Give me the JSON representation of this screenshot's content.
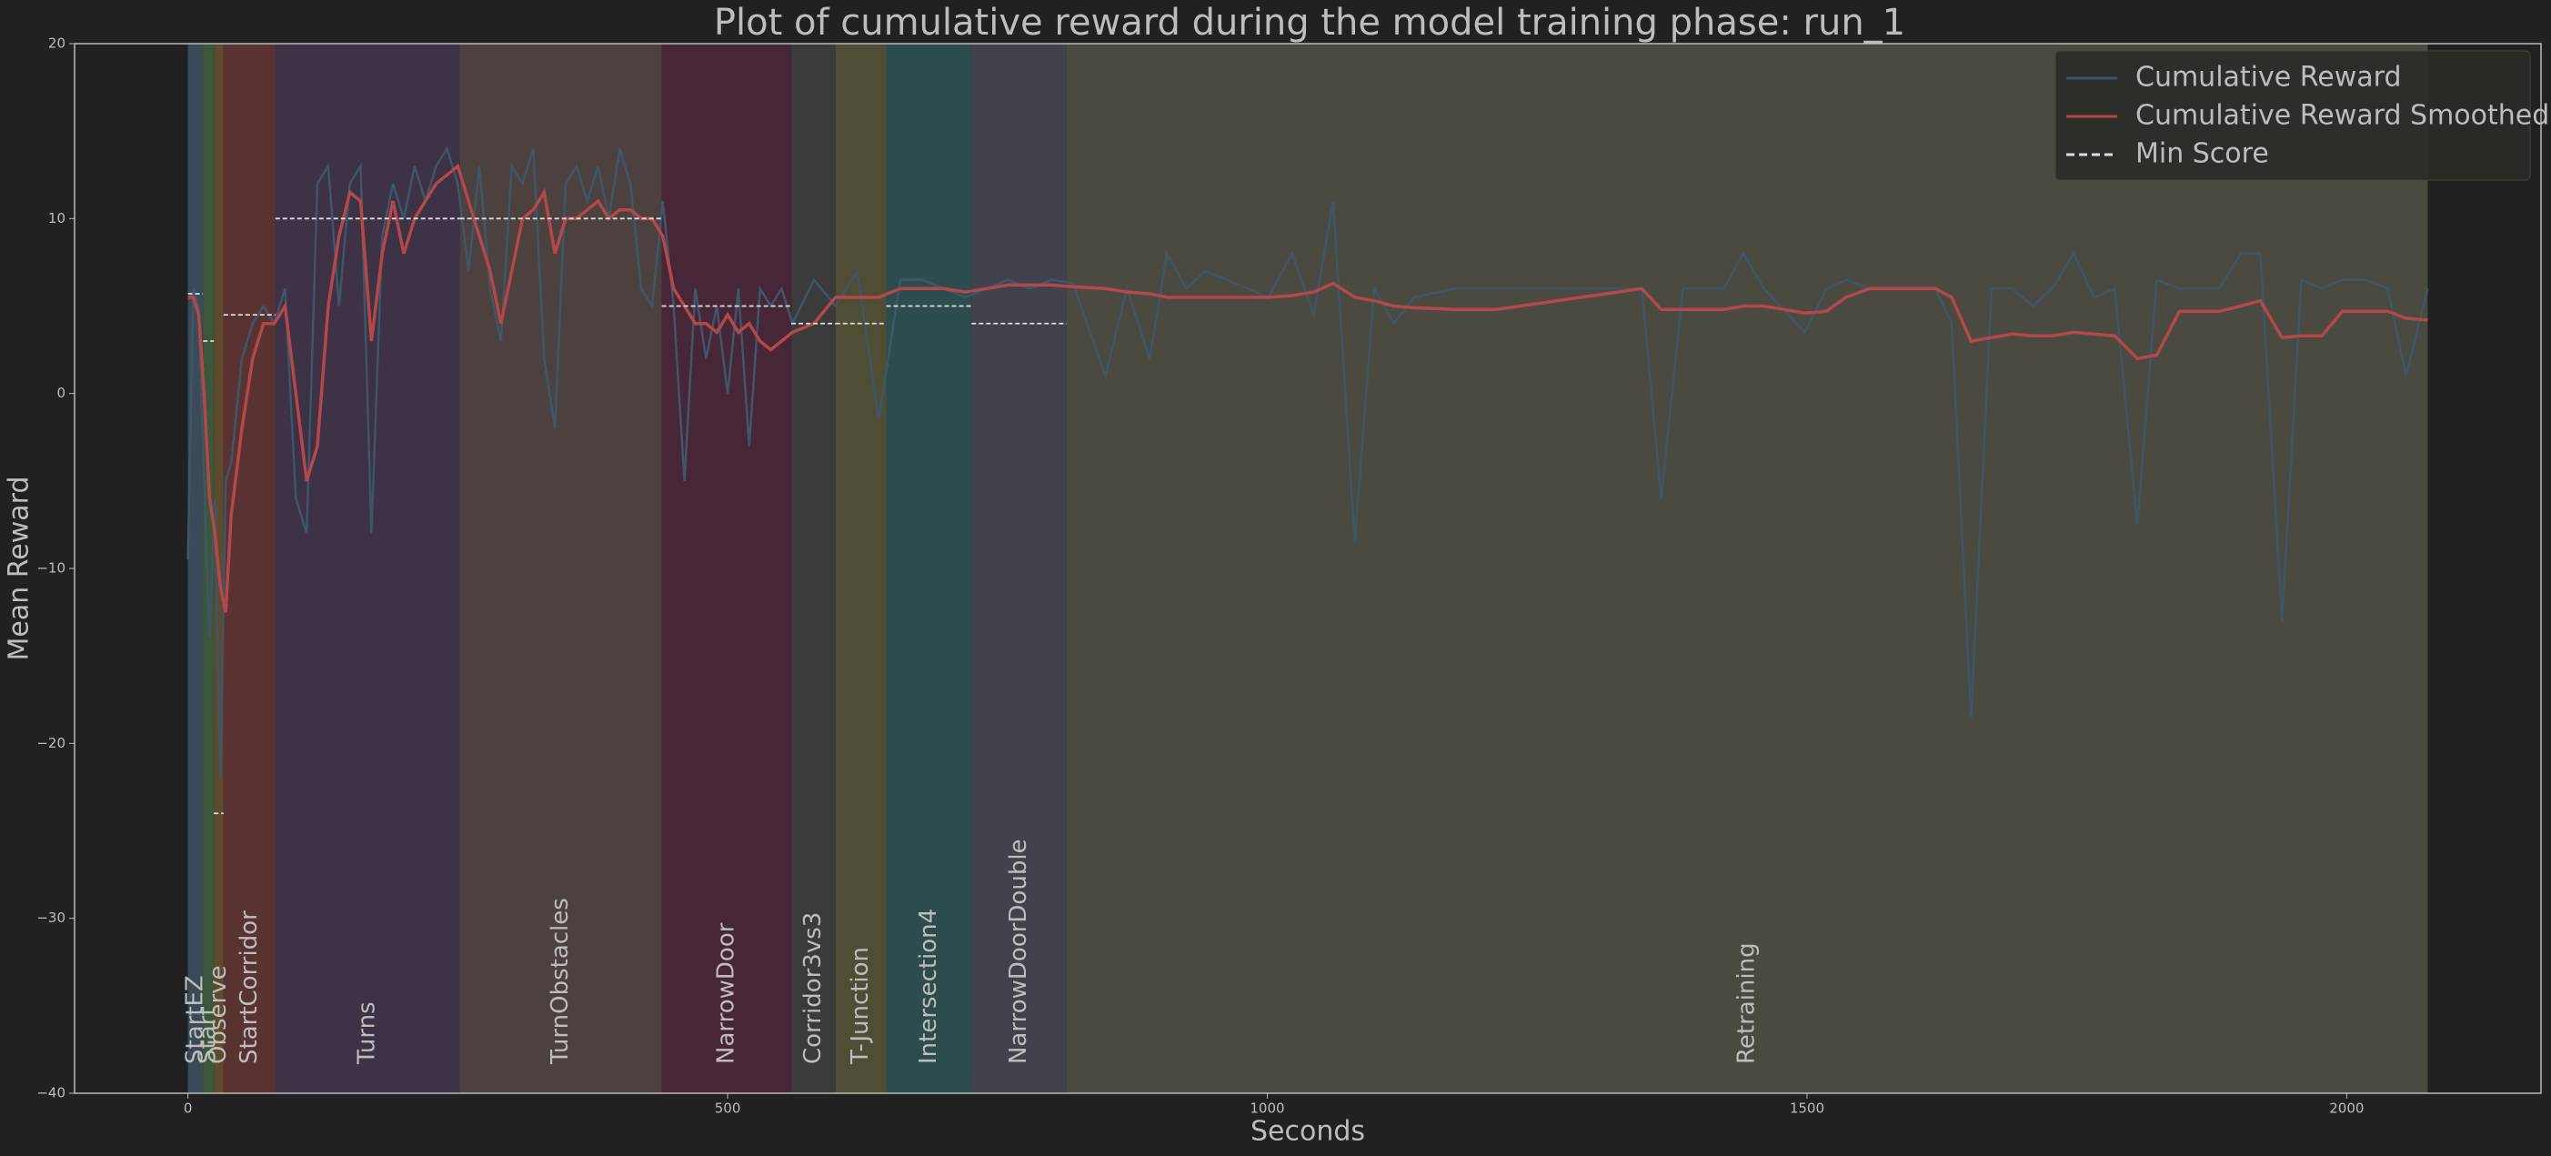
{
  "chart_data": {
    "type": "line",
    "title": "Plot of cumulative reward during the model training phase: run_1",
    "xlabel": "Seconds",
    "ylabel": "Mean Reward",
    "xlim": [
      -105,
      2180
    ],
    "ylim": [
      -40,
      20
    ],
    "xticks": [
      0,
      500,
      1000,
      1500,
      2000
    ],
    "yticks": [
      {
        "value": -40,
        "label": "−40"
      },
      {
        "value": -30,
        "label": "−30"
      },
      {
        "value": -20,
        "label": "−20"
      },
      {
        "value": -10,
        "label": "−10"
      },
      0,
      10,
      20
    ],
    "legend": "upper right",
    "min_score_name": "Min Score",
    "min_score_color": "#dddddd",
    "x": [
      0,
      5,
      10,
      15,
      20,
      25,
      30,
      35,
      40,
      50,
      60,
      70,
      80,
      90,
      100,
      110,
      120,
      130,
      140,
      150,
      160,
      170,
      180,
      190,
      200,
      210,
      220,
      230,
      240,
      250,
      260,
      270,
      280,
      290,
      300,
      310,
      320,
      330,
      340,
      350,
      360,
      370,
      380,
      390,
      400,
      410,
      420,
      430,
      440,
      450,
      460,
      470,
      480,
      490,
      500,
      510,
      520,
      530,
      540,
      550,
      560,
      580,
      600,
      620,
      640,
      660,
      680,
      700,
      720,
      740,
      760,
      780,
      800,
      820,
      850,
      870,
      891,
      907,
      925,
      943,
      1001,
      1023,
      1043,
      1061,
      1081,
      1099,
      1117,
      1136,
      1174,
      1212,
      1347,
      1365,
      1385,
      1423,
      1441,
      1460,
      1498,
      1518,
      1536,
      1558,
      1619,
      1634,
      1652,
      1671,
      1690,
      1709,
      1727,
      1747,
      1766,
      1785,
      1806,
      1824,
      1845,
      1882,
      1902,
      1920,
      1940,
      1958,
      1977,
      1996,
      2018,
      2038,
      2055,
      2075
    ],
    "series": [
      {
        "name": "Cumulative Reward",
        "color": "#3e5668",
        "values": [
          -9.5,
          6,
          5,
          -5,
          -14,
          -6,
          -22,
          -5,
          -4,
          2,
          4,
          5,
          4,
          6,
          -6,
          -8,
          12,
          13,
          5,
          12,
          13,
          -8,
          9,
          12,
          10,
          13,
          11,
          13,
          14,
          12,
          7,
          13,
          6,
          3,
          13,
          12,
          14,
          2,
          -2,
          12,
          13,
          11,
          13,
          10,
          14,
          12,
          6,
          5,
          11,
          5,
          -5,
          6,
          2,
          5,
          0,
          6,
          -3,
          6,
          5,
          6,
          4,
          6.5,
          5,
          7,
          -1.5,
          6.5,
          6.5,
          6,
          5.5,
          6,
          6.5,
          6,
          6.5,
          6.3,
          1,
          6,
          2,
          8,
          6,
          7,
          5.5,
          8,
          4.5,
          11,
          -8.5,
          6,
          4,
          5.5,
          6,
          6,
          6,
          -6,
          6,
          6,
          8,
          6,
          3.5,
          6,
          6.5,
          6,
          6,
          4,
          -18.5,
          6,
          6,
          5,
          6,
          8,
          5.5,
          6,
          -7.5,
          6.5,
          6,
          6,
          8,
          8,
          -13,
          6.5,
          6,
          6.5,
          6.5,
          6,
          1,
          6
        ]
      },
      {
        "name": "Cumulative Reward Smoothed",
        "color": "#b2484a",
        "values": [
          5.5,
          5.5,
          4.5,
          0,
          -6,
          -8,
          -11,
          -12.5,
          -7,
          -2,
          2,
          4,
          4,
          5,
          0,
          -5,
          -3,
          5,
          9,
          11.5,
          11,
          3,
          8,
          11,
          8,
          10,
          11,
          12,
          12.5,
          13,
          11,
          9,
          7,
          4,
          7,
          10,
          10.5,
          11.5,
          8,
          10,
          10,
          10.5,
          11,
          10,
          10.5,
          10.5,
          10,
          10,
          9,
          6,
          5,
          4,
          4,
          3.5,
          4.5,
          3.5,
          4,
          3,
          2.5,
          3,
          3.5,
          4,
          5.5,
          5.5,
          5.5,
          6,
          6,
          6,
          5.8,
          6,
          6.2,
          6.2,
          6.2,
          6.1,
          6,
          5.8,
          5.7,
          5.5,
          5.5,
          5.5,
          5.5,
          5.6,
          5.8,
          6.3,
          5.5,
          5.3,
          5,
          4.9,
          4.8,
          4.8,
          6,
          4.8,
          4.8,
          4.8,
          5,
          5,
          4.6,
          4.7,
          5.5,
          6,
          6,
          5.5,
          3,
          3.2,
          3.4,
          3.3,
          3.3,
          3.5,
          3.4,
          3.3,
          2,
          2.2,
          4.7,
          4.7,
          5,
          5.3,
          3.2,
          3.3,
          3.3,
          4.7,
          4.7,
          4.7,
          4.3,
          4.2
        ]
      }
    ],
    "regions": [
      {
        "label": "StartEZ",
        "start": 0,
        "end": 14,
        "color": "#3a4a56",
        "min_score": 5.7
      },
      {
        "label": "Start",
        "start": 14,
        "end": 24,
        "color": "#3b573b",
        "min_score": 3
      },
      {
        "label": "Observe",
        "start": 24,
        "end": 33,
        "color": "#5e4a2c",
        "min_score": -24
      },
      {
        "label": "StartCorridor",
        "start": 33,
        "end": 81,
        "color": "#5a3232",
        "min_score": 4.5
      },
      {
        "label": "Turns",
        "start": 81,
        "end": 252,
        "color": "#3d3246",
        "min_score": 10
      },
      {
        "label": "TurnObstacles",
        "start": 252,
        "end": 439,
        "color": "#4c413f",
        "min_score": 10
      },
      {
        "label": "NarrowDoor",
        "start": 439,
        "end": 559,
        "color": "#472637",
        "min_score": 5
      },
      {
        "label": "Corridor3vs3",
        "start": 559,
        "end": 600,
        "color": "#3b3b3b",
        "min_score": 4
      },
      {
        "label": "T-Junction",
        "start": 600,
        "end": 647,
        "color": "#4f4d34",
        "min_score": 4
      },
      {
        "label": "Intersection4",
        "start": 647,
        "end": 726,
        "color": "#2d4c4e",
        "min_score": 5
      },
      {
        "label": "NarrowDoorDouble",
        "start": 726,
        "end": 814,
        "color": "#42424d",
        "min_score": 4
      },
      {
        "label": "Retraining",
        "start": 814,
        "end": 2075,
        "color": "#4a4a40"
      }
    ]
  }
}
